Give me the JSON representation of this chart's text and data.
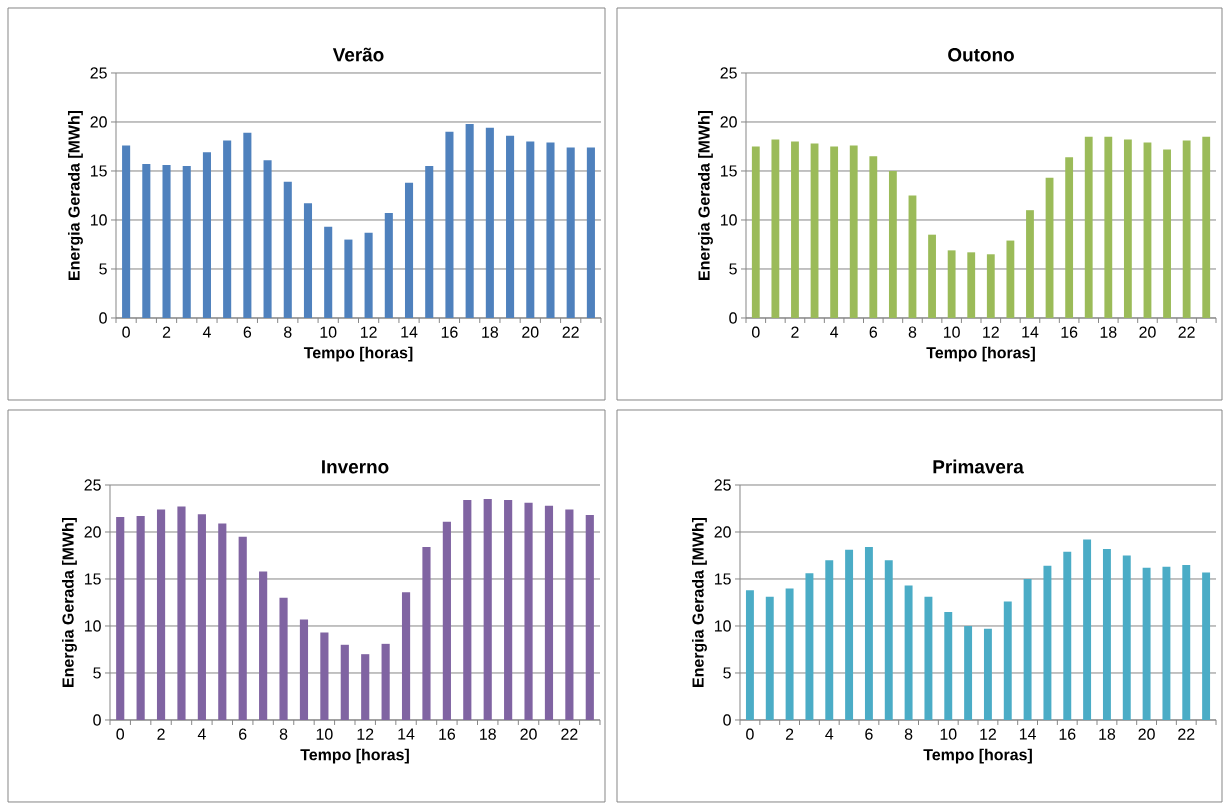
{
  "chart_data": [
    {
      "type": "bar",
      "title": "Verão",
      "xlabel": "Tempo [horas]",
      "ylabel": "Energia Gerada [MWh]",
      "categories": [
        "0",
        null,
        "2",
        null,
        "4",
        null,
        "6",
        null,
        "8",
        null,
        "10",
        null,
        "12",
        null,
        "14",
        null,
        "16",
        null,
        "18",
        null,
        "20",
        null,
        "22",
        null
      ],
      "color": "#4f81bd",
      "ylim": [
        0,
        25
      ],
      "yticks": [
        0,
        5,
        10,
        15,
        20,
        25
      ],
      "grid": "y",
      "values": [
        17.6,
        15.7,
        15.6,
        15.5,
        16.9,
        18.1,
        18.9,
        16.1,
        13.9,
        11.7,
        9.3,
        8.0,
        8.7,
        10.7,
        13.8,
        15.5,
        19.0,
        19.8,
        19.4,
        18.6,
        18.0,
        17.9,
        17.4,
        17.4
      ]
    },
    {
      "type": "bar",
      "title": "Outono",
      "xlabel": "Tempo [horas]",
      "ylabel": "Energia Gerada [MWh]",
      "categories": [
        "0",
        null,
        "2",
        null,
        "4",
        null,
        "6",
        null,
        "8",
        null,
        "10",
        null,
        "12",
        null,
        "14",
        null,
        "16",
        null,
        "18",
        null,
        "20",
        null,
        "22",
        null
      ],
      "color": "#9bbb59",
      "ylim": [
        0,
        25
      ],
      "yticks": [
        0,
        5,
        10,
        15,
        20,
        25
      ],
      "grid": "y",
      "values": [
        17.5,
        18.2,
        18.0,
        17.8,
        17.5,
        17.6,
        16.5,
        15.0,
        12.5,
        8.5,
        6.9,
        6.7,
        6.5,
        7.9,
        11.0,
        14.3,
        16.4,
        18.5,
        18.5,
        18.2,
        17.9,
        17.2,
        18.1,
        18.5
      ]
    },
    {
      "type": "bar",
      "title": "Inverno",
      "xlabel": "Tempo [horas]",
      "ylabel": "Energia Gerada [MWh]",
      "categories": [
        "0",
        null,
        "2",
        null,
        "4",
        null,
        "6",
        null,
        "8",
        null,
        "10",
        null,
        "12",
        null,
        "14",
        null,
        "16",
        null,
        "18",
        null,
        "20",
        null,
        "22",
        null
      ],
      "color": "#8064a2",
      "ylim": [
        0,
        25
      ],
      "yticks": [
        0,
        5,
        10,
        15,
        20,
        25
      ],
      "grid": "y",
      "values": [
        21.6,
        21.7,
        22.4,
        22.7,
        21.9,
        20.9,
        19.5,
        15.8,
        13.0,
        10.7,
        9.3,
        8.0,
        7.0,
        8.1,
        13.6,
        18.4,
        21.1,
        23.4,
        23.5,
        23.4,
        23.1,
        22.8,
        22.4,
        21.8
      ]
    },
    {
      "type": "bar",
      "title": "Primavera",
      "xlabel": "Tempo [horas]",
      "ylabel": "Energia Gerada [MWh]",
      "categories": [
        "0",
        null,
        "2",
        null,
        "4",
        null,
        "6",
        null,
        "8",
        null,
        "10",
        null,
        "12",
        null,
        "14",
        null,
        "16",
        null,
        "18",
        null,
        "20",
        null,
        "22",
        null
      ],
      "color": "#4bacc6",
      "ylim": [
        0,
        25
      ],
      "yticks": [
        0,
        5,
        10,
        15,
        20,
        25
      ],
      "grid": "y",
      "values": [
        13.8,
        13.1,
        14.0,
        15.6,
        17.0,
        18.1,
        18.4,
        17.0,
        14.3,
        13.1,
        11.5,
        10.0,
        9.7,
        12.6,
        15.0,
        16.4,
        17.9,
        19.2,
        18.2,
        17.5,
        16.2,
        16.3,
        16.5,
        15.7
      ]
    }
  ]
}
